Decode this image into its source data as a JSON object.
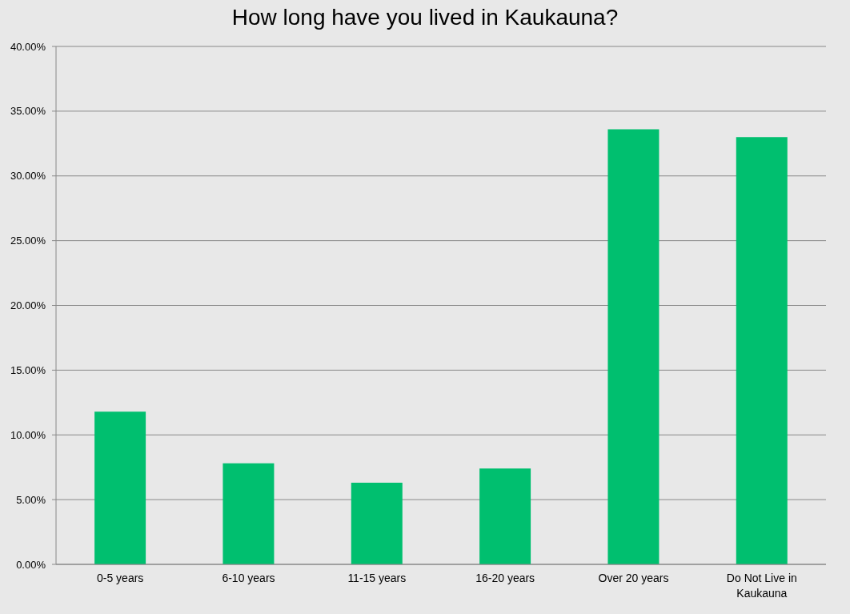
{
  "chart_data": {
    "type": "bar",
    "title": "How long have you lived in Kaukauna?",
    "categories": [
      "0-5 years",
      "6-10 years",
      "11-15 years",
      "16-20 years",
      "Over 20 years",
      "Do Not Live in Kaukauna"
    ],
    "values": [
      11.8,
      7.8,
      6.3,
      7.4,
      33.6,
      33.0
    ],
    "color": "#00bf6f",
    "ylim": [
      0,
      40
    ],
    "yticks": [
      {
        "value": 0,
        "label": "0.00%"
      },
      {
        "value": 5,
        "label": "5.00%"
      },
      {
        "value": 10,
        "label": "10.00%"
      },
      {
        "value": 15,
        "label": "15.00%"
      },
      {
        "value": 20,
        "label": "20.00%"
      },
      {
        "value": 25,
        "label": "25.00%"
      },
      {
        "value": 30,
        "label": "30.00%"
      },
      {
        "value": 35,
        "label": "35.00%"
      },
      {
        "value": 40,
        "label": "40.00%"
      }
    ],
    "grid": "y"
  }
}
